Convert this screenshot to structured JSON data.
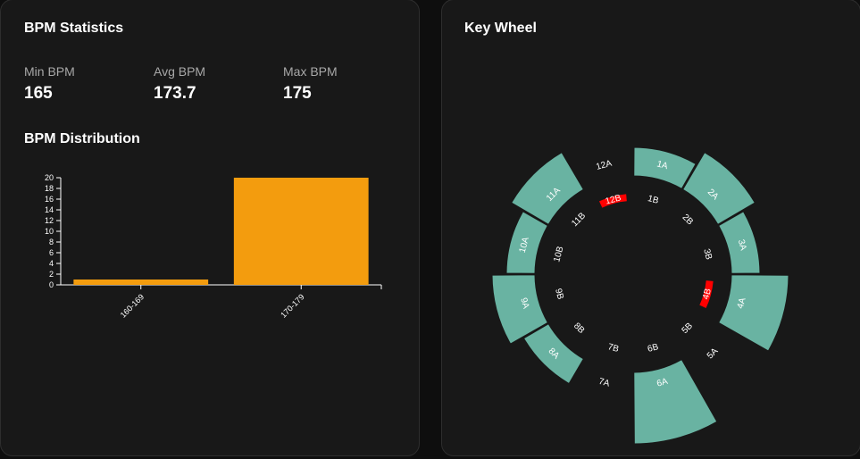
{
  "bpm_stats": {
    "title": "BPM Statistics",
    "min": {
      "label": "Min BPM",
      "value": "165"
    },
    "avg": {
      "label": "Avg BPM",
      "value": "173.7"
    },
    "max": {
      "label": "Max BPM",
      "value": "175"
    }
  },
  "distribution": {
    "title": "BPM Distribution"
  },
  "key_wheel": {
    "title": "Key Wheel"
  },
  "chart_data": [
    {
      "type": "bar",
      "title": "BPM Distribution",
      "categories": [
        "160-169",
        "170-179"
      ],
      "values": [
        1,
        20
      ],
      "ylim": [
        0,
        20
      ],
      "yticks": [
        0,
        2,
        4,
        6,
        8,
        10,
        12,
        14,
        16,
        18,
        20
      ],
      "bar_color": "#f39c0e",
      "grid": false
    },
    {
      "type": "radial-bar",
      "title": "Key Wheel",
      "outer_keys": [
        "1A",
        "2A",
        "3A",
        "4A",
        "5A",
        "6A",
        "7A",
        "8A",
        "9A",
        "10A",
        "11A",
        "12A"
      ],
      "outer_values": [
        1,
        2,
        1,
        3,
        0,
        4,
        0,
        1,
        2,
        1,
        2,
        0
      ],
      "inner_keys": [
        "1B",
        "2B",
        "3B",
        "4B",
        "5B",
        "6B",
        "7B",
        "8B",
        "9B",
        "10B",
        "11B",
        "12B"
      ],
      "inner_highlighted": [
        "4B",
        "12B"
      ],
      "outer_color": "#69b3a2",
      "highlight_color": "#ff0000"
    }
  ]
}
